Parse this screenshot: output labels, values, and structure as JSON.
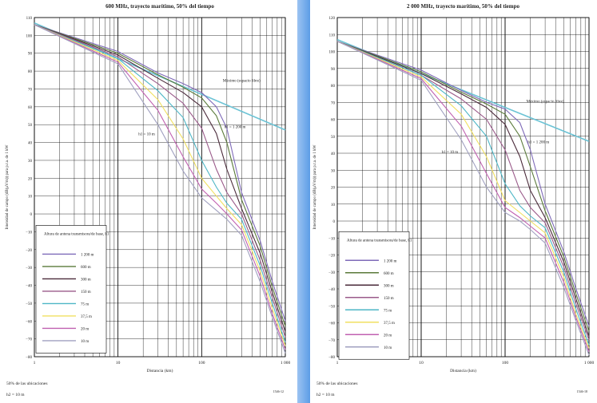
{
  "colors": {
    "background_strip": "#4a90e2",
    "free_space_line": "#6cc3d5",
    "grid": "#000000",
    "heights": [
      "#7e6ab8",
      "#5a7a3a",
      "#4a2a3a",
      "#9a5a8a",
      "#4db6c6",
      "#f0e060",
      "#c060b0",
      "#a0a0c0"
    ]
  },
  "chart_data": [
    {
      "type": "line",
      "title": "600 MHz, trayecto marítimo, 50% del tiempo",
      "xlabel": "Distancia (km)",
      "ylabel": "Intensidad de campo (dB(μV/m)) para p.r.a. de 1 kW",
      "xscale": "log",
      "xlim": [
        1,
        1000
      ],
      "ylim": [
        -80,
        110
      ],
      "x_ticks": [
        "1",
        "10",
        "100",
        "1 000"
      ],
      "y_ticks": [
        "110",
        "100",
        "90",
        "80",
        "70",
        "60",
        "50",
        "40",
        "30",
        "20",
        "10",
        "0",
        "−10",
        "−20",
        "−30",
        "−40",
        "−50",
        "−60",
        "−70",
        "−80"
      ],
      "grid": true,
      "legend_title": "Altura de antena transmisora/de base, h1",
      "legend_placement": "bottom-left",
      "annotations": [
        {
          "text": "Máximo (espacio libre)",
          "x": 300,
          "y": 74
        },
        {
          "text": "h1 = 1 200 m",
          "x": 250,
          "y": 48
        },
        {
          "text": "h1 = 10 m",
          "x": 22,
          "y": 44
        }
      ],
      "footnote_1": "50% de las ubicaciones",
      "footnote_2": "h2 = 10 m",
      "figure_id": "1546-12",
      "free_space": {
        "name": "Máximo (espacio libre)",
        "x": [
          1,
          1000
        ],
        "y": [
          107,
          47
        ]
      },
      "series": [
        {
          "name": "1 200 m",
          "x": [
            1,
            10,
            30,
            60,
            100,
            150,
            200,
            300,
            500,
            700,
            1000
          ],
          "y": [
            106,
            91,
            79,
            73,
            68,
            60,
            48,
            12,
            -15,
            -38,
            -60
          ]
        },
        {
          "name": "600 m",
          "x": [
            1,
            10,
            30,
            60,
            100,
            150,
            200,
            300,
            500,
            700,
            1000
          ],
          "y": [
            106,
            90,
            78,
            71,
            65,
            55,
            40,
            8,
            -18,
            -41,
            -63
          ]
        },
        {
          "name": "300 m",
          "x": [
            1,
            10,
            30,
            60,
            100,
            150,
            200,
            300,
            500,
            700,
            1000
          ],
          "y": [
            106,
            89,
            76,
            68,
            60,
            45,
            25,
            3,
            -22,
            -44,
            -66
          ]
        },
        {
          "name": "150 m",
          "x": [
            1,
            10,
            30,
            60,
            100,
            150,
            200,
            300,
            500,
            700,
            1000
          ],
          "y": [
            106,
            88,
            73,
            62,
            48,
            25,
            12,
            0,
            -26,
            -47,
            -69
          ]
        },
        {
          "name": "75 m",
          "x": [
            1,
            10,
            30,
            60,
            100,
            150,
            200,
            300,
            500,
            700,
            1000
          ],
          "y": [
            106,
            87,
            69,
            54,
            30,
            15,
            6,
            -3,
            -29,
            -50,
            -72
          ]
        },
        {
          "name": "37,5 m",
          "x": [
            1,
            10,
            30,
            60,
            100,
            150,
            200,
            300,
            500,
            700,
            1000
          ],
          "y": [
            106,
            86,
            64,
            42,
            20,
            10,
            3,
            -6,
            -32,
            -53,
            -74
          ]
        },
        {
          "name": "20 m",
          "x": [
            1,
            10,
            30,
            60,
            100,
            150,
            200,
            300,
            500,
            700,
            1000
          ],
          "y": [
            106,
            85,
            58,
            32,
            14,
            6,
            0,
            -9,
            -35,
            -56,
            -76
          ]
        },
        {
          "name": "10 m",
          "x": [
            1,
            10,
            30,
            60,
            100,
            150,
            200,
            300,
            500,
            700,
            1000
          ],
          "y": [
            106,
            84,
            50,
            24,
            9,
            2,
            -3,
            -12,
            -38,
            -58,
            -78
          ]
        }
      ]
    },
    {
      "type": "line",
      "title": "2 000 MHz, trayecto marítimo, 50% del tiempo",
      "xlabel": "Distancia (km)",
      "ylabel": "Intensidad de campo (dB(μV/m)) para p.r.a. de 1 kW",
      "xscale": "log",
      "xlim": [
        1,
        1000
      ],
      "ylim": [
        -80,
        120
      ],
      "x_ticks": [
        "1",
        "10",
        "100",
        "1 000"
      ],
      "y_ticks": [
        "120",
        "110",
        "100",
        "90",
        "80",
        "70",
        "60",
        "50",
        "40",
        "30",
        "20",
        "10",
        "0",
        "−10",
        "−20",
        "−30",
        "−40",
        "−50",
        "−60",
        "−70",
        "−80"
      ],
      "grid": true,
      "legend_title": "Altura de antena transmisora/de base, h1",
      "legend_placement": "bottom-left",
      "annotations": [
        {
          "text": "Máximo (espacio libre)",
          "x": 300,
          "y": 70
        },
        {
          "text": "h1 = 1 200 m",
          "x": 250,
          "y": 46
        },
        {
          "text": "h1 = 10 m",
          "x": 22,
          "y": 40
        }
      ],
      "footnote_1": "50% de las ubicaciones",
      "footnote_2": "h2 = 10 m",
      "figure_id": "1546-18",
      "free_space": {
        "name": "Máximo (espacio libre)",
        "x": [
          1,
          1000
        ],
        "y": [
          107,
          47
        ]
      },
      "series": [
        {
          "name": "1 200 m",
          "x": [
            1,
            10,
            30,
            60,
            100,
            150,
            200,
            300,
            500,
            700,
            1000
          ],
          "y": [
            106,
            89,
            77,
            70,
            66,
            58,
            42,
            10,
            -18,
            -40,
            -62
          ]
        },
        {
          "name": "600 m",
          "x": [
            1,
            10,
            30,
            60,
            100,
            150,
            200,
            300,
            500,
            700,
            1000
          ],
          "y": [
            106,
            88,
            76,
            69,
            63,
            50,
            32,
            6,
            -21,
            -43,
            -65
          ]
        },
        {
          "name": "300 m",
          "x": [
            1,
            10,
            30,
            60,
            100,
            150,
            200,
            300,
            500,
            700,
            1000
          ],
          "y": [
            106,
            87,
            75,
            67,
            57,
            38,
            18,
            2,
            -24,
            -46,
            -68
          ]
        },
        {
          "name": "150 m",
          "x": [
            1,
            10,
            30,
            60,
            100,
            150,
            200,
            300,
            500,
            700,
            1000
          ],
          "y": [
            106,
            86,
            72,
            60,
            42,
            18,
            8,
            -1,
            -27,
            -49,
            -70
          ]
        },
        {
          "name": "75 m",
          "x": [
            1,
            10,
            30,
            60,
            100,
            150,
            200,
            300,
            500,
            700,
            1000
          ],
          "y": [
            106,
            86,
            68,
            50,
            22,
            9,
            3,
            -4,
            -30,
            -52,
            -73
          ]
        },
        {
          "name": "37,5 m",
          "x": [
            1,
            10,
            30,
            60,
            100,
            150,
            200,
            300,
            500,
            700,
            1000
          ],
          "y": [
            106,
            85,
            63,
            38,
            12,
            5,
            0,
            -7,
            -33,
            -55,
            -75
          ]
        },
        {
          "name": "20 m",
          "x": [
            1,
            10,
            30,
            60,
            100,
            150,
            200,
            300,
            500,
            700,
            1000
          ],
          "y": [
            106,
            84,
            56,
            28,
            8,
            2,
            -3,
            -10,
            -36,
            -57,
            -77
          ]
        },
        {
          "name": "10 m",
          "x": [
            1,
            10,
            30,
            60,
            100,
            150,
            200,
            300,
            500,
            700,
            1000
          ],
          "y": [
            106,
            83,
            48,
            20,
            5,
            0,
            -5,
            -13,
            -39,
            -59,
            -79
          ]
        }
      ]
    }
  ]
}
